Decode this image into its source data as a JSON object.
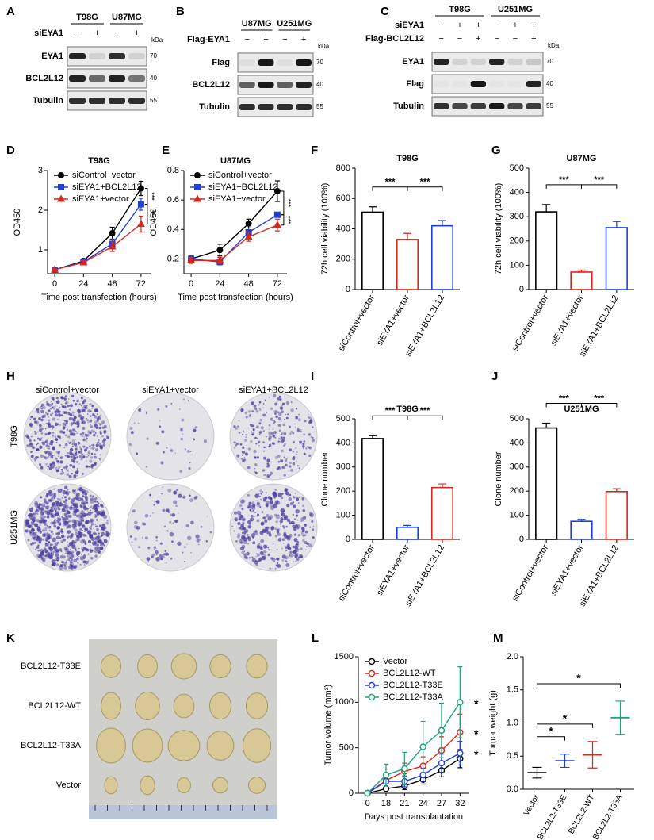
{
  "blots": [
    {
      "label": "A",
      "groups": [
        "T98G",
        "U87MG"
      ],
      "conditions": [
        {
          "name": "siEYA1",
          "signs": [
            "−",
            "+",
            "−",
            "+"
          ]
        }
      ],
      "unit": "kDa",
      "rows": [
        {
          "name": "EYA1",
          "kda": 70,
          "intensity": [
            0.85,
            0.1,
            0.8,
            0.1
          ]
        },
        {
          "name": "BCL2L12",
          "kda": 40,
          "intensity": [
            0.85,
            0.55,
            0.85,
            0.5
          ]
        },
        {
          "name": "Tubulin",
          "kda": 55,
          "intensity": [
            0.8,
            0.8,
            0.8,
            0.8
          ]
        }
      ]
    },
    {
      "label": "B",
      "groups": [
        "U87MG",
        "U251MG"
      ],
      "conditions": [
        {
          "name": "Flag-EYA1",
          "signs": [
            "−",
            "+",
            "−",
            "+"
          ]
        }
      ],
      "unit": "kDa",
      "rows": [
        {
          "name": "Flag",
          "kda": 70,
          "intensity": [
            0.05,
            0.9,
            0.05,
            0.9
          ]
        },
        {
          "name": "BCL2L12",
          "kda": 40,
          "intensity": [
            0.6,
            0.9,
            0.6,
            0.85
          ]
        },
        {
          "name": "Tubulin",
          "kda": 55,
          "intensity": [
            0.8,
            0.8,
            0.8,
            0.8
          ]
        }
      ]
    },
    {
      "label": "C",
      "groups": [
        "T98G",
        "U251MG"
      ],
      "conditions": [
        {
          "name": "siEYA1",
          "signs": [
            "−",
            "+",
            "+",
            "−",
            "+",
            "+"
          ]
        },
        {
          "name": "Flag-BCL2L12",
          "signs": [
            "−",
            "−",
            "+",
            "−",
            "−",
            "+"
          ]
        }
      ],
      "unit": "kDa",
      "rows": [
        {
          "name": "EYA1",
          "kda": 70,
          "intensity": [
            0.85,
            0.1,
            0.1,
            0.85,
            0.1,
            0.15
          ]
        },
        {
          "name": "Flag",
          "kda": 40,
          "intensity": [
            0.02,
            0.02,
            0.9,
            0.02,
            0.02,
            0.85
          ]
        },
        {
          "name": "Tubulin",
          "kda": 55,
          "intensity": [
            0.8,
            0.7,
            0.75,
            0.9,
            0.7,
            0.75
          ]
        }
      ]
    }
  ],
  "colonies": {
    "label": "H",
    "columns": [
      "siControl+vector",
      "siEYA1+vector",
      "siEYA1+BCL2L12"
    ],
    "rows": [
      "T98G",
      "U251MG"
    ]
  },
  "xenograft": {
    "label": "K",
    "rows": [
      "BCL2L12-T33E",
      "BCL2L12-WT",
      "BCL2L12-T33A",
      "Vector"
    ]
  },
  "chart_data": [
    {
      "label": "D",
      "type": "line",
      "title": "T98G",
      "x_label": "Time post transfection (hours)",
      "y_label": "OD450",
      "x": [
        0,
        24,
        48,
        72
      ],
      "xlim": [
        -6,
        80
      ],
      "xticks": [
        0,
        24,
        48,
        72
      ],
      "ylim": [
        0.4,
        3.0
      ],
      "yticks": [
        1,
        2,
        3
      ],
      "legend": "upper left",
      "series": [
        {
          "name": "siControl+vector",
          "color": "#000000",
          "marker": "circle",
          "values": [
            0.5,
            0.72,
            1.42,
            2.55
          ],
          "errors": [
            0.02,
            0.05,
            0.15,
            0.18
          ]
        },
        {
          "name": "siEYA1+BCL2L12",
          "color": "#1f3fd6",
          "marker": "square",
          "values": [
            0.5,
            0.7,
            1.15,
            2.15
          ],
          "errors": [
            0.02,
            0.05,
            0.12,
            0.15
          ]
        },
        {
          "name": "siEYA1+vector",
          "color": "#d6281c",
          "marker": "triangle",
          "values": [
            0.5,
            0.68,
            1.08,
            1.65
          ],
          "errors": [
            0.02,
            0.05,
            0.12,
            0.2
          ]
        }
      ],
      "annotations": [
        {
          "text": "***",
          "between": [
            0,
            1
          ]
        },
        {
          "text": "***",
          "between": [
            1,
            2
          ]
        }
      ]
    },
    {
      "label": "E",
      "type": "line",
      "title": "U87MG",
      "x_label": "Time post transfection (hours)",
      "y_label": "OD450",
      "x": [
        0,
        24,
        48,
        72
      ],
      "xlim": [
        -6,
        80
      ],
      "xticks": [
        0,
        24,
        48,
        72
      ],
      "ylim": [
        0.1,
        0.8
      ],
      "yticks": [
        0.2,
        0.4,
        0.6,
        0.8
      ],
      "legend": "upper left",
      "series": [
        {
          "name": "siControl+vector",
          "color": "#000000",
          "marker": "circle",
          "values": [
            0.2,
            0.26,
            0.44,
            0.66
          ],
          "errors": [
            0.02,
            0.04,
            0.03,
            0.07
          ]
        },
        {
          "name": "siEYA1+BCL2L12",
          "color": "#1f3fd6",
          "marker": "square",
          "values": [
            0.2,
            0.18,
            0.38,
            0.5
          ],
          "errors": [
            0.02,
            0.02,
            0.03,
            0.01
          ]
        },
        {
          "name": "siEYA1+vector",
          "color": "#d6281c",
          "marker": "triangle",
          "values": [
            0.19,
            0.19,
            0.35,
            0.43
          ],
          "errors": [
            0.02,
            0.02,
            0.03,
            0.04
          ]
        }
      ],
      "annotations": [
        {
          "text": "***",
          "between": [
            0,
            1
          ]
        },
        {
          "text": "***",
          "between": [
            1,
            2
          ]
        }
      ]
    },
    {
      "label": "F",
      "type": "bar",
      "title": "T98G",
      "y_label": "72h cell viability (100%)",
      "categories": [
        "siControl+vector",
        "siEYA1+vector",
        "siEYA1+BCL2L12"
      ],
      "colors": [
        "#000000",
        "#d6281c",
        "#1f3fd6"
      ],
      "values": [
        510,
        330,
        420
      ],
      "errors": [
        35,
        40,
        35
      ],
      "ylim": [
        0,
        800
      ],
      "yticks": [
        0,
        200,
        400,
        600,
        800
      ],
      "annotations": [
        {
          "text": "***",
          "between": [
            0,
            1
          ]
        },
        {
          "text": "***",
          "between": [
            1,
            2
          ]
        }
      ]
    },
    {
      "label": "G",
      "type": "bar",
      "title": "U87MG",
      "y_label": "72h cell viability (100%)",
      "categories": [
        "siControl+vector",
        "siEYA1+vector",
        "siEYA1+BCL2L12"
      ],
      "colors": [
        "#000000",
        "#d6281c",
        "#1f3fd6"
      ],
      "values": [
        320,
        72,
        255
      ],
      "errors": [
        30,
        8,
        25
      ],
      "ylim": [
        0,
        500
      ],
      "yticks": [
        0,
        100,
        200,
        300,
        400,
        500
      ],
      "annotations": [
        {
          "text": "***",
          "between": [
            0,
            1
          ]
        },
        {
          "text": "***",
          "between": [
            1,
            2
          ]
        }
      ]
    },
    {
      "label": "I",
      "type": "bar",
      "title": "T98G",
      "y_label": "Clone number",
      "categories": [
        "siControl+vector",
        "siEYA1+vector",
        "siEYA1+BCL2L12"
      ],
      "colors": [
        "#000000",
        "#1f3fd6",
        "#d6281c"
      ],
      "values": [
        418,
        50,
        215
      ],
      "errors": [
        12,
        8,
        15
      ],
      "ylim": [
        0,
        500
      ],
      "yticks": [
        0,
        100,
        200,
        300,
        400,
        500
      ],
      "annotations": [
        {
          "text": "***",
          "between": [
            0,
            1
          ]
        },
        {
          "text": "***",
          "between": [
            1,
            2
          ]
        }
      ]
    },
    {
      "label": "J",
      "type": "bar",
      "title": "U251MG",
      "y_label": "Clone number",
      "categories": [
        "siControl+vector",
        "siEYA1+vector",
        "siEYA1+BCL2L12"
      ],
      "colors": [
        "#000000",
        "#1f3fd6",
        "#d6281c"
      ],
      "values": [
        462,
        75,
        198
      ],
      "errors": [
        20,
        8,
        12
      ],
      "ylim": [
        0,
        500
      ],
      "yticks": [
        0,
        100,
        200,
        300,
        400,
        500
      ],
      "annotations": [
        {
          "text": "***",
          "between": [
            0,
            1
          ]
        },
        {
          "text": "***",
          "between": [
            1,
            2
          ]
        }
      ]
    },
    {
      "label": "L",
      "type": "line",
      "x_label": "Days post transplantation",
      "y_label": "Tumor volume (mm³)",
      "categories": [
        "0",
        "18",
        "21",
        "24",
        "27",
        "32"
      ],
      "ylim": [
        0,
        1500
      ],
      "yticks": [
        0,
        500,
        1000,
        1500
      ],
      "legend": "upper left",
      "hollow": true,
      "series": [
        {
          "name": "Vector",
          "color": "#000000",
          "marker": "circle",
          "values": [
            0,
            50,
            80,
            150,
            250,
            380
          ],
          "errors": [
            0,
            30,
            40,
            50,
            70,
            100
          ]
        },
        {
          "name": "BCL2L12-WT",
          "color": "#d6281c",
          "marker": "circle",
          "values": [
            0,
            140,
            240,
            300,
            470,
            670
          ],
          "errors": [
            0,
            60,
            90,
            100,
            150,
            200
          ]
        },
        {
          "name": "BCL2L12-T33E",
          "color": "#1f3fd6",
          "marker": "circle",
          "values": [
            0,
            130,
            130,
            200,
            330,
            440
          ],
          "errors": [
            0,
            50,
            60,
            70,
            100,
            130
          ]
        },
        {
          "name": "BCL2L12-T33A",
          "color": "#1aa37a",
          "marker": "circle",
          "values": [
            0,
            200,
            270,
            510,
            690,
            1000
          ],
          "errors": [
            0,
            120,
            180,
            280,
            300,
            390
          ]
        }
      ],
      "annotations": [
        {
          "text": "*",
          "series": 3
        },
        {
          "text": "*",
          "series": 1
        },
        {
          "text": "*",
          "series": 2
        }
      ]
    },
    {
      "label": "M",
      "type": "dot",
      "y_label": "Tumor weight (g)",
      "categories": [
        "Vector",
        "BCL2L2-T33E",
        "BCL2L2-WT",
        "BCL2L2-T33A"
      ],
      "colors": [
        "#000000",
        "#1f3fd6",
        "#d6281c",
        "#1aa37a"
      ],
      "values": [
        0.25,
        0.43,
        0.52,
        1.08
      ],
      "errors": [
        0.08,
        0.1,
        0.2,
        0.25
      ],
      "ylim": [
        0,
        2
      ],
      "yticks": [
        {
          "value": 0,
          "label": "0.0"
        },
        0.5,
        {
          "value": 1,
          "label": "1.0"
        },
        1.5,
        {
          "value": 2,
          "label": "2.0"
        }
      ],
      "annotations": [
        {
          "text": "*",
          "between": [
            0,
            1
          ]
        },
        {
          "text": "*",
          "between": [
            0,
            2
          ]
        },
        {
          "text": "*",
          "between": [
            0,
            3
          ]
        }
      ]
    }
  ]
}
